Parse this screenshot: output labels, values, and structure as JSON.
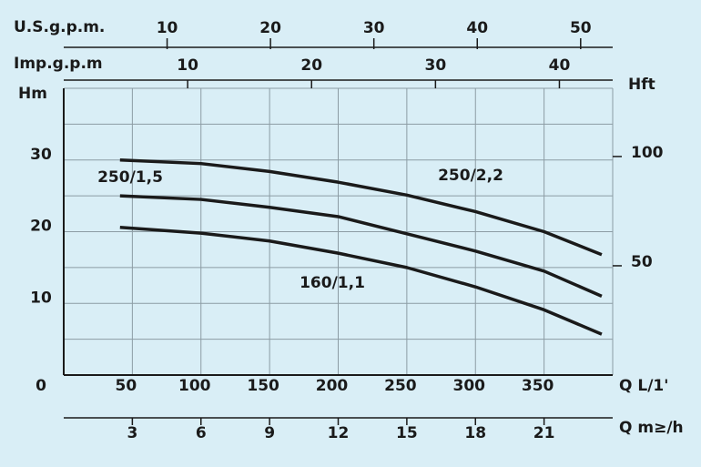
{
  "chart_data": {
    "type": "line",
    "x": [
      41,
      100,
      150,
      200,
      250,
      300,
      350,
      392
    ],
    "series": [
      {
        "name": "250/2,2",
        "color": "#1a1a1a",
        "values": [
          30,
          29.5,
          28.4,
          26.9,
          25.1,
          22.8,
          20,
          16.8
        ]
      },
      {
        "name": "250/1,5",
        "color": "#1a1a1a",
        "values": [
          25,
          24.5,
          23.4,
          22.1,
          19.7,
          17.3,
          14.5,
          11
        ]
      },
      {
        "name": "160/1,1",
        "color": "#1a1a1a",
        "values": [
          20.6,
          19.8,
          18.7,
          17,
          15,
          12.3,
          9.1,
          5.7
        ]
      }
    ],
    "xlabel": "Q L/1'",
    "xlim": [
      0,
      400
    ],
    "xticks": [
      50,
      100,
      150,
      200,
      250,
      300,
      350
    ],
    "ylabel": "Hm",
    "ylim": [
      0,
      40
    ],
    "yticks": [
      0,
      10,
      20,
      30
    ],
    "ygrid": [
      5,
      10,
      15,
      20,
      25,
      30,
      35,
      40
    ],
    "y2label": "Hft",
    "y2lim": [
      0,
      131.2
    ],
    "y2ticks": [
      50,
      100
    ],
    "grid": true,
    "extra_axes": [
      {
        "position": "top",
        "label": "U.S.g.p.m.",
        "lim": [
          0,
          53.1
        ],
        "ticks": [
          10,
          20,
          30,
          40,
          50
        ]
      },
      {
        "position": "top",
        "label": "Imp.g.p.m",
        "lim": [
          0,
          44.3
        ],
        "ticks": [
          10,
          20,
          30,
          40
        ]
      },
      {
        "position": "bottom",
        "label": "Q m≥/h",
        "lim": [
          0,
          24
        ],
        "ticks": [
          3,
          6,
          9,
          12,
          15,
          18,
          21
        ]
      }
    ]
  }
}
